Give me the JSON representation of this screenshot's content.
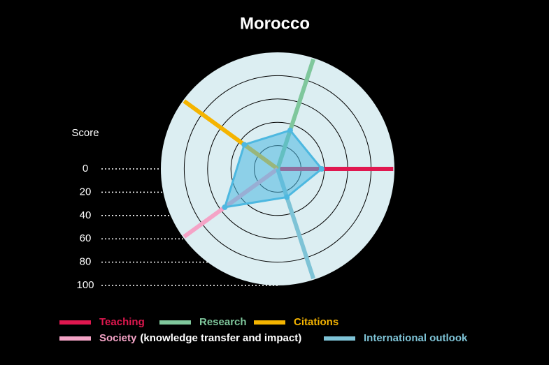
{
  "chart_data": {
    "type": "radar",
    "title": "Morocco",
    "scale_label": "Score",
    "categories": [
      "Teaching",
      "Research",
      "Citations",
      "Society",
      "International outlook"
    ],
    "category_suffixes": [
      null,
      null,
      null,
      "(knowledge transfer and impact)",
      null
    ],
    "category_colors": [
      "#e0174f",
      "#7fc79c",
      "#f5b400",
      "#f4a3c6",
      "#7ec3d6"
    ],
    "values": [
      37.7,
      34.8,
      35.3,
      55.9,
      25.5
    ],
    "color": "#4db8e0",
    "rlim": [
      0,
      100
    ],
    "rticks": [
      0,
      20,
      40,
      60,
      80,
      100
    ]
  }
}
